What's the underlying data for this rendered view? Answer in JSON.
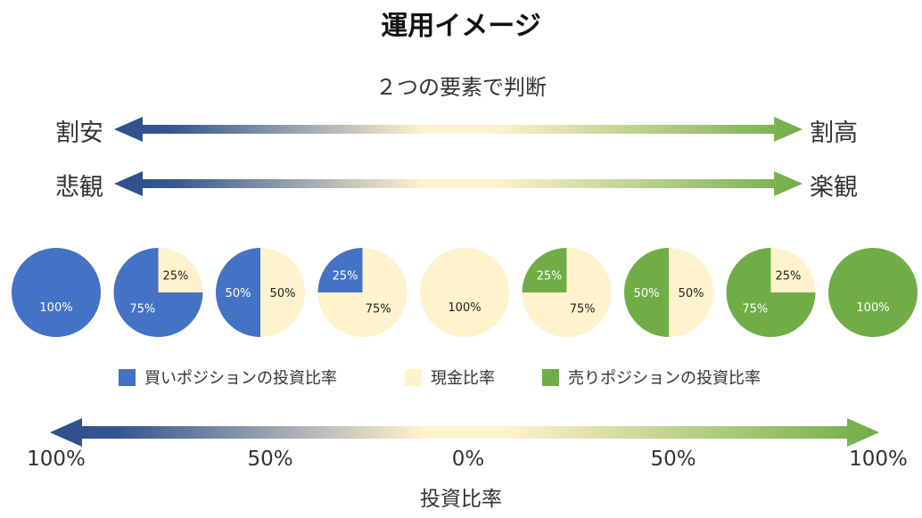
{
  "header": {
    "title": "運用イメージ",
    "subtitle": "２つの要素で判断"
  },
  "scales": [
    {
      "left": "割安",
      "right": "割高"
    },
    {
      "left": "悲観",
      "right": "楽観"
    }
  ],
  "colors": {
    "buy": "#4472C4",
    "cash": "#FFF2CC",
    "sell": "#70AD47",
    "arrow_dark_blue": "#2F4F8F"
  },
  "pies": [
    {
      "buy": 100,
      "cash": 0,
      "sell": 0,
      "labels": {
        "buy": "100%"
      }
    },
    {
      "buy": 75,
      "cash": 25,
      "sell": 0,
      "labels": {
        "buy": "75%",
        "cash": "25%"
      }
    },
    {
      "buy": 50,
      "cash": 50,
      "sell": 0,
      "labels": {
        "buy": "50%",
        "cash": "50%"
      }
    },
    {
      "buy": 25,
      "cash": 75,
      "sell": 0,
      "labels": {
        "buy": "25%",
        "cash": "75%"
      }
    },
    {
      "buy": 0,
      "cash": 100,
      "sell": 0,
      "labels": {
        "cash": "100%"
      }
    },
    {
      "buy": 0,
      "cash": 75,
      "sell": 25,
      "labels": {
        "sell": "25%",
        "cash": "75%"
      }
    },
    {
      "buy": 0,
      "cash": 50,
      "sell": 50,
      "labels": {
        "sell": "50%",
        "cash": "50%"
      }
    },
    {
      "buy": 0,
      "cash": 25,
      "sell": 75,
      "labels": {
        "sell": "75%",
        "cash": "25%"
      }
    },
    {
      "buy": 0,
      "cash": 0,
      "sell": 100,
      "labels": {
        "sell": "100%"
      }
    }
  ],
  "legend": {
    "buy": "買いポジションの投資比率",
    "cash": "現金比率",
    "sell": "売りポジションの投資比率"
  },
  "axis": {
    "ticks": [
      "100%",
      "50%",
      "0%",
      "50%",
      "100%"
    ],
    "title": "投資比率"
  }
}
